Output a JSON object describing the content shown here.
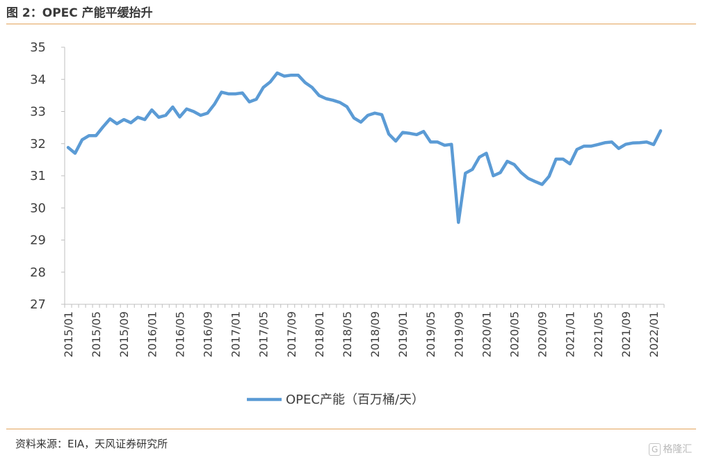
{
  "figure": {
    "title": "图 2：OPEC 产能平缓抬升",
    "source": "资料来源：EIA，天风证券研究所",
    "watermark": "格隆汇",
    "watermark_icon": "G",
    "rule_color": "#e3a35a"
  },
  "chart_data": {
    "type": "line",
    "title": "",
    "xlabel": "",
    "ylabel": "",
    "ylim": [
      27,
      35
    ],
    "yticks": [
      27,
      28,
      29,
      30,
      31,
      32,
      33,
      34,
      35
    ],
    "x_tick_labels": [
      "2015/01",
      "2015/05",
      "2015/09",
      "2016/01",
      "2016/05",
      "2016/09",
      "2017/01",
      "2017/05",
      "2017/09",
      "2018/01",
      "2018/05",
      "2018/09",
      "2019/01",
      "2019/05",
      "2019/09",
      "2020/01",
      "2020/05",
      "2020/09",
      "2021/01",
      "2021/05",
      "2021/09",
      "2022/01"
    ],
    "grid": false,
    "legend_position": "bottom",
    "line_color": "#5b9bd5",
    "series": [
      {
        "name": "OPEC产能（百万桶/天）",
        "x": [
          "2015/01",
          "2015/02",
          "2015/03",
          "2015/04",
          "2015/05",
          "2015/06",
          "2015/07",
          "2015/08",
          "2015/09",
          "2015/10",
          "2015/11",
          "2015/12",
          "2016/01",
          "2016/02",
          "2016/03",
          "2016/04",
          "2016/05",
          "2016/06",
          "2016/07",
          "2016/08",
          "2016/09",
          "2016/10",
          "2016/11",
          "2016/12",
          "2017/01",
          "2017/02",
          "2017/03",
          "2017/04",
          "2017/05",
          "2017/06",
          "2017/07",
          "2017/08",
          "2017/09",
          "2017/10",
          "2017/11",
          "2017/12",
          "2018/01",
          "2018/02",
          "2018/03",
          "2018/04",
          "2018/05",
          "2018/06",
          "2018/07",
          "2018/08",
          "2018/09",
          "2018/10",
          "2018/11",
          "2018/12",
          "2019/01",
          "2019/02",
          "2019/03",
          "2019/04",
          "2019/05",
          "2019/06",
          "2019/07",
          "2019/08",
          "2019/09",
          "2019/10",
          "2019/11",
          "2019/12",
          "2020/01",
          "2020/02",
          "2020/03",
          "2020/04",
          "2020/05",
          "2020/06",
          "2020/07",
          "2020/08",
          "2020/09",
          "2020/10",
          "2020/11",
          "2020/12",
          "2021/01",
          "2021/02",
          "2021/03",
          "2021/04",
          "2021/05",
          "2021/06",
          "2021/07",
          "2021/08",
          "2021/09",
          "2021/10",
          "2021/11",
          "2021/12",
          "2022/01",
          "2022/02"
        ],
        "values": [
          31.88,
          31.7,
          32.12,
          32.25,
          32.25,
          32.52,
          32.77,
          32.62,
          32.75,
          32.65,
          32.82,
          32.75,
          33.05,
          32.82,
          32.88,
          33.14,
          32.83,
          33.08,
          33.0,
          32.88,
          32.95,
          33.23,
          33.6,
          33.55,
          33.55,
          33.58,
          33.3,
          33.38,
          33.75,
          33.92,
          34.2,
          34.1,
          34.13,
          34.13,
          33.9,
          33.75,
          33.5,
          33.4,
          33.35,
          33.28,
          33.15,
          32.8,
          32.67,
          32.88,
          32.95,
          32.9,
          32.3,
          32.08,
          32.35,
          32.32,
          32.28,
          32.38,
          32.05,
          32.05,
          31.95,
          31.98,
          29.55,
          31.08,
          31.2,
          31.58,
          31.7,
          31.0,
          31.1,
          31.45,
          31.35,
          31.1,
          30.92,
          30.82,
          30.73,
          30.98,
          31.52,
          31.52,
          31.37,
          31.82,
          31.92,
          31.92,
          31.97,
          32.03,
          32.05,
          31.85,
          31.98,
          32.02,
          32.03,
          32.05,
          31.97,
          32.4
        ]
      }
    ]
  }
}
